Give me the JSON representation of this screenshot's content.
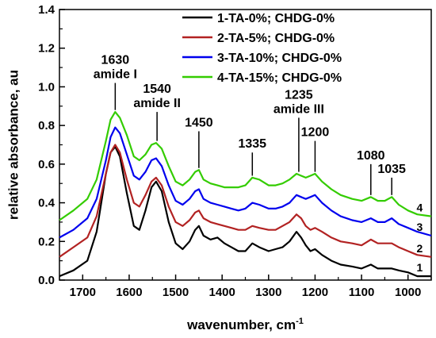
{
  "chart_data": {
    "type": "line",
    "xlabel": "wavenumber, cm",
    "xlabel_sup": "-1",
    "ylabel": "relative absorbance, au",
    "xlim": [
      1750,
      950
    ],
    "ylim": [
      0.0,
      1.4
    ],
    "x_reversed": true,
    "x_ticks": [
      1700,
      1600,
      1500,
      1400,
      1300,
      1200,
      1100,
      1000
    ],
    "y_ticks": [
      0.0,
      0.2,
      0.4,
      0.6,
      0.8,
      1.0,
      1.2,
      1.4
    ],
    "y_tick_labels": [
      "0.0",
      "0.2",
      "0.4",
      "0.6",
      "0.8",
      "1.0",
      "1.2",
      "1.4"
    ],
    "grid": false,
    "legend_position": "top-right",
    "series": [
      {
        "name": "1-TA-0%; CHDG-0%",
        "label": "1",
        "color": "#000000",
        "points": [
          [
            1750,
            0.02
          ],
          [
            1720,
            0.05
          ],
          [
            1690,
            0.1
          ],
          [
            1670,
            0.25
          ],
          [
            1650,
            0.55
          ],
          [
            1640,
            0.66
          ],
          [
            1630,
            0.69
          ],
          [
            1620,
            0.64
          ],
          [
            1605,
            0.45
          ],
          [
            1590,
            0.28
          ],
          [
            1578,
            0.26
          ],
          [
            1565,
            0.36
          ],
          [
            1552,
            0.48
          ],
          [
            1542,
            0.51
          ],
          [
            1530,
            0.46
          ],
          [
            1515,
            0.3
          ],
          [
            1500,
            0.19
          ],
          [
            1485,
            0.16
          ],
          [
            1470,
            0.2
          ],
          [
            1458,
            0.26
          ],
          [
            1450,
            0.28
          ],
          [
            1440,
            0.23
          ],
          [
            1425,
            0.21
          ],
          [
            1410,
            0.22
          ],
          [
            1395,
            0.19
          ],
          [
            1380,
            0.17
          ],
          [
            1365,
            0.15
          ],
          [
            1350,
            0.15
          ],
          [
            1335,
            0.19
          ],
          [
            1320,
            0.17
          ],
          [
            1300,
            0.15
          ],
          [
            1285,
            0.16
          ],
          [
            1270,
            0.17
          ],
          [
            1255,
            0.2
          ],
          [
            1240,
            0.25
          ],
          [
            1230,
            0.22
          ],
          [
            1220,
            0.18
          ],
          [
            1210,
            0.15
          ],
          [
            1200,
            0.16
          ],
          [
            1185,
            0.13
          ],
          [
            1165,
            0.1
          ],
          [
            1145,
            0.08
          ],
          [
            1120,
            0.07
          ],
          [
            1100,
            0.06
          ],
          [
            1080,
            0.08
          ],
          [
            1065,
            0.06
          ],
          [
            1050,
            0.06
          ],
          [
            1035,
            0.06
          ],
          [
            1020,
            0.05
          ],
          [
            1000,
            0.04
          ],
          [
            980,
            0.02
          ],
          [
            950,
            0.02
          ]
        ]
      },
      {
        "name": "2-TA-5%; CHDG-0%",
        "label": "2",
        "color": "#b22222",
        "points": [
          [
            1750,
            0.12
          ],
          [
            1720,
            0.17
          ],
          [
            1690,
            0.22
          ],
          [
            1670,
            0.33
          ],
          [
            1650,
            0.55
          ],
          [
            1640,
            0.66
          ],
          [
            1630,
            0.7
          ],
          [
            1620,
            0.66
          ],
          [
            1605,
            0.52
          ],
          [
            1590,
            0.4
          ],
          [
            1578,
            0.38
          ],
          [
            1565,
            0.44
          ],
          [
            1552,
            0.51
          ],
          [
            1542,
            0.53
          ],
          [
            1530,
            0.49
          ],
          [
            1515,
            0.38
          ],
          [
            1500,
            0.3
          ],
          [
            1485,
            0.28
          ],
          [
            1470,
            0.31
          ],
          [
            1458,
            0.35
          ],
          [
            1450,
            0.36
          ],
          [
            1440,
            0.32
          ],
          [
            1425,
            0.3
          ],
          [
            1410,
            0.29
          ],
          [
            1395,
            0.28
          ],
          [
            1380,
            0.27
          ],
          [
            1365,
            0.26
          ],
          [
            1350,
            0.26
          ],
          [
            1335,
            0.28
          ],
          [
            1320,
            0.27
          ],
          [
            1300,
            0.26
          ],
          [
            1285,
            0.26
          ],
          [
            1270,
            0.28
          ],
          [
            1255,
            0.3
          ],
          [
            1240,
            0.34
          ],
          [
            1230,
            0.32
          ],
          [
            1220,
            0.28
          ],
          [
            1210,
            0.26
          ],
          [
            1200,
            0.27
          ],
          [
            1185,
            0.25
          ],
          [
            1165,
            0.22
          ],
          [
            1145,
            0.2
          ],
          [
            1120,
            0.19
          ],
          [
            1100,
            0.18
          ],
          [
            1080,
            0.21
          ],
          [
            1065,
            0.19
          ],
          [
            1050,
            0.19
          ],
          [
            1035,
            0.19
          ],
          [
            1020,
            0.17
          ],
          [
            1000,
            0.15
          ],
          [
            980,
            0.13
          ],
          [
            950,
            0.12
          ]
        ]
      },
      {
        "name": "3-TA-10%; CHDG-0%",
        "label": "3",
        "color": "#0000ee",
        "points": [
          [
            1750,
            0.22
          ],
          [
            1720,
            0.26
          ],
          [
            1690,
            0.32
          ],
          [
            1670,
            0.42
          ],
          [
            1650,
            0.62
          ],
          [
            1640,
            0.74
          ],
          [
            1630,
            0.79
          ],
          [
            1620,
            0.76
          ],
          [
            1605,
            0.65
          ],
          [
            1590,
            0.54
          ],
          [
            1578,
            0.52
          ],
          [
            1565,
            0.56
          ],
          [
            1552,
            0.62
          ],
          [
            1542,
            0.63
          ],
          [
            1530,
            0.59
          ],
          [
            1515,
            0.49
          ],
          [
            1500,
            0.41
          ],
          [
            1485,
            0.39
          ],
          [
            1470,
            0.42
          ],
          [
            1458,
            0.46
          ],
          [
            1450,
            0.47
          ],
          [
            1440,
            0.42
          ],
          [
            1425,
            0.4
          ],
          [
            1410,
            0.39
          ],
          [
            1395,
            0.38
          ],
          [
            1380,
            0.37
          ],
          [
            1365,
            0.36
          ],
          [
            1350,
            0.37
          ],
          [
            1335,
            0.4
          ],
          [
            1320,
            0.39
          ],
          [
            1300,
            0.37
          ],
          [
            1285,
            0.37
          ],
          [
            1270,
            0.38
          ],
          [
            1255,
            0.4
          ],
          [
            1240,
            0.44
          ],
          [
            1230,
            0.43
          ],
          [
            1220,
            0.42
          ],
          [
            1210,
            0.43
          ],
          [
            1200,
            0.44
          ],
          [
            1185,
            0.4
          ],
          [
            1165,
            0.36
          ],
          [
            1145,
            0.33
          ],
          [
            1120,
            0.31
          ],
          [
            1100,
            0.3
          ],
          [
            1080,
            0.32
          ],
          [
            1065,
            0.3
          ],
          [
            1050,
            0.3
          ],
          [
            1035,
            0.32
          ],
          [
            1020,
            0.29
          ],
          [
            1000,
            0.27
          ],
          [
            980,
            0.25
          ],
          [
            950,
            0.23
          ]
        ]
      },
      {
        "name": "4-TA-15%; CHDG-0%",
        "label": "4",
        "color": "#33cc00",
        "points": [
          [
            1750,
            0.31
          ],
          [
            1720,
            0.36
          ],
          [
            1690,
            0.42
          ],
          [
            1670,
            0.52
          ],
          [
            1650,
            0.72
          ],
          [
            1640,
            0.83
          ],
          [
            1630,
            0.87
          ],
          [
            1620,
            0.84
          ],
          [
            1605,
            0.75
          ],
          [
            1590,
            0.64
          ],
          [
            1578,
            0.62
          ],
          [
            1565,
            0.65
          ],
          [
            1552,
            0.7
          ],
          [
            1542,
            0.71
          ],
          [
            1530,
            0.68
          ],
          [
            1515,
            0.59
          ],
          [
            1500,
            0.51
          ],
          [
            1485,
            0.49
          ],
          [
            1470,
            0.52
          ],
          [
            1458,
            0.56
          ],
          [
            1450,
            0.57
          ],
          [
            1440,
            0.52
          ],
          [
            1425,
            0.5
          ],
          [
            1410,
            0.49
          ],
          [
            1395,
            0.48
          ],
          [
            1380,
            0.48
          ],
          [
            1365,
            0.48
          ],
          [
            1350,
            0.49
          ],
          [
            1335,
            0.53
          ],
          [
            1320,
            0.52
          ],
          [
            1300,
            0.49
          ],
          [
            1285,
            0.49
          ],
          [
            1270,
            0.5
          ],
          [
            1255,
            0.52
          ],
          [
            1240,
            0.55
          ],
          [
            1230,
            0.54
          ],
          [
            1220,
            0.53
          ],
          [
            1210,
            0.54
          ],
          [
            1200,
            0.55
          ],
          [
            1185,
            0.51
          ],
          [
            1165,
            0.47
          ],
          [
            1145,
            0.44
          ],
          [
            1120,
            0.42
          ],
          [
            1100,
            0.41
          ],
          [
            1080,
            0.43
          ],
          [
            1065,
            0.41
          ],
          [
            1050,
            0.41
          ],
          [
            1035,
            0.43
          ],
          [
            1020,
            0.39
          ],
          [
            1000,
            0.36
          ],
          [
            980,
            0.34
          ],
          [
            950,
            0.33
          ]
        ]
      }
    ],
    "annotations": [
      {
        "x": 1630,
        "lines": [
          "1630",
          "amide I"
        ],
        "y_line_top": 1.02,
        "y_line_bottom": 0.88
      },
      {
        "x": 1540,
        "lines": [
          "1540",
          "amide II"
        ],
        "y_line_top": 0.87,
        "y_line_bottom": 0.72
      },
      {
        "x": 1450,
        "lines": [
          "1450"
        ],
        "y_line_top": 0.77,
        "y_line_bottom": 0.58
      },
      {
        "x": 1335,
        "lines": [
          "1335"
        ],
        "y_line_top": 0.66,
        "y_line_bottom": 0.54
      },
      {
        "x": 1235,
        "lines": [
          "1235",
          "amide III"
        ],
        "y_line_top": 0.84,
        "y_line_bottom": 0.56
      },
      {
        "x": 1200,
        "lines": [
          "1200"
        ],
        "y_line_top": 0.72,
        "y_line_bottom": 0.56
      },
      {
        "x": 1080,
        "lines": [
          "1080"
        ],
        "y_line_top": 0.6,
        "y_line_bottom": 0.44
      },
      {
        "x": 1035,
        "lines": [
          "1035"
        ],
        "y_line_top": 0.53,
        "y_line_bottom": 0.44
      }
    ]
  }
}
